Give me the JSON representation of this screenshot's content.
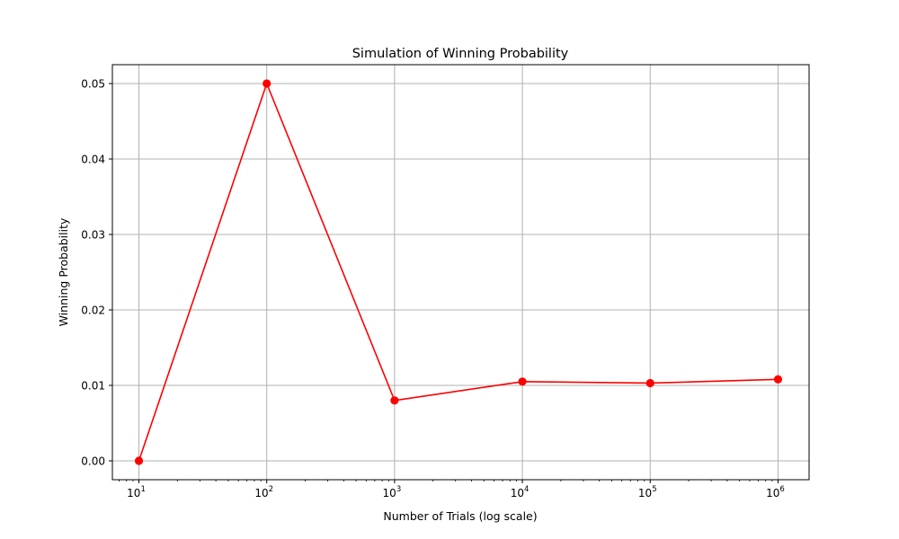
{
  "chart_data": {
    "type": "line",
    "title": "Simulation of Winning Probability",
    "xlabel": "Number of Trials (log scale)",
    "ylabel": "Winning Probability",
    "xscale": "log",
    "x": [
      10,
      100,
      1000,
      10000,
      100000,
      1000000
    ],
    "series": [
      {
        "values": [
          0.0,
          0.05,
          0.008,
          0.0105,
          0.0103,
          0.0108
        ],
        "color": "#ff0000",
        "marker": "circle"
      }
    ],
    "x_ticks": [
      {
        "value": 10,
        "base": "10",
        "exp": "1"
      },
      {
        "value": 100,
        "base": "10",
        "exp": "2"
      },
      {
        "value": 1000,
        "base": "10",
        "exp": "3"
      },
      {
        "value": 10000,
        "base": "10",
        "exp": "4"
      },
      {
        "value": 100000,
        "base": "10",
        "exp": "5"
      },
      {
        "value": 1000000,
        "base": "10",
        "exp": "6"
      }
    ],
    "y_ticks": [
      {
        "value": 0.0,
        "label": "0.00"
      },
      {
        "value": 0.01,
        "label": "0.01"
      },
      {
        "value": 0.02,
        "label": "0.02"
      },
      {
        "value": 0.03,
        "label": "0.03"
      },
      {
        "value": 0.04,
        "label": "0.04"
      },
      {
        "value": 0.05,
        "label": "0.05"
      }
    ],
    "xlim": [
      6.2,
      1750000
    ],
    "ylim": [
      -0.0025,
      0.0525
    ],
    "grid": true
  }
}
